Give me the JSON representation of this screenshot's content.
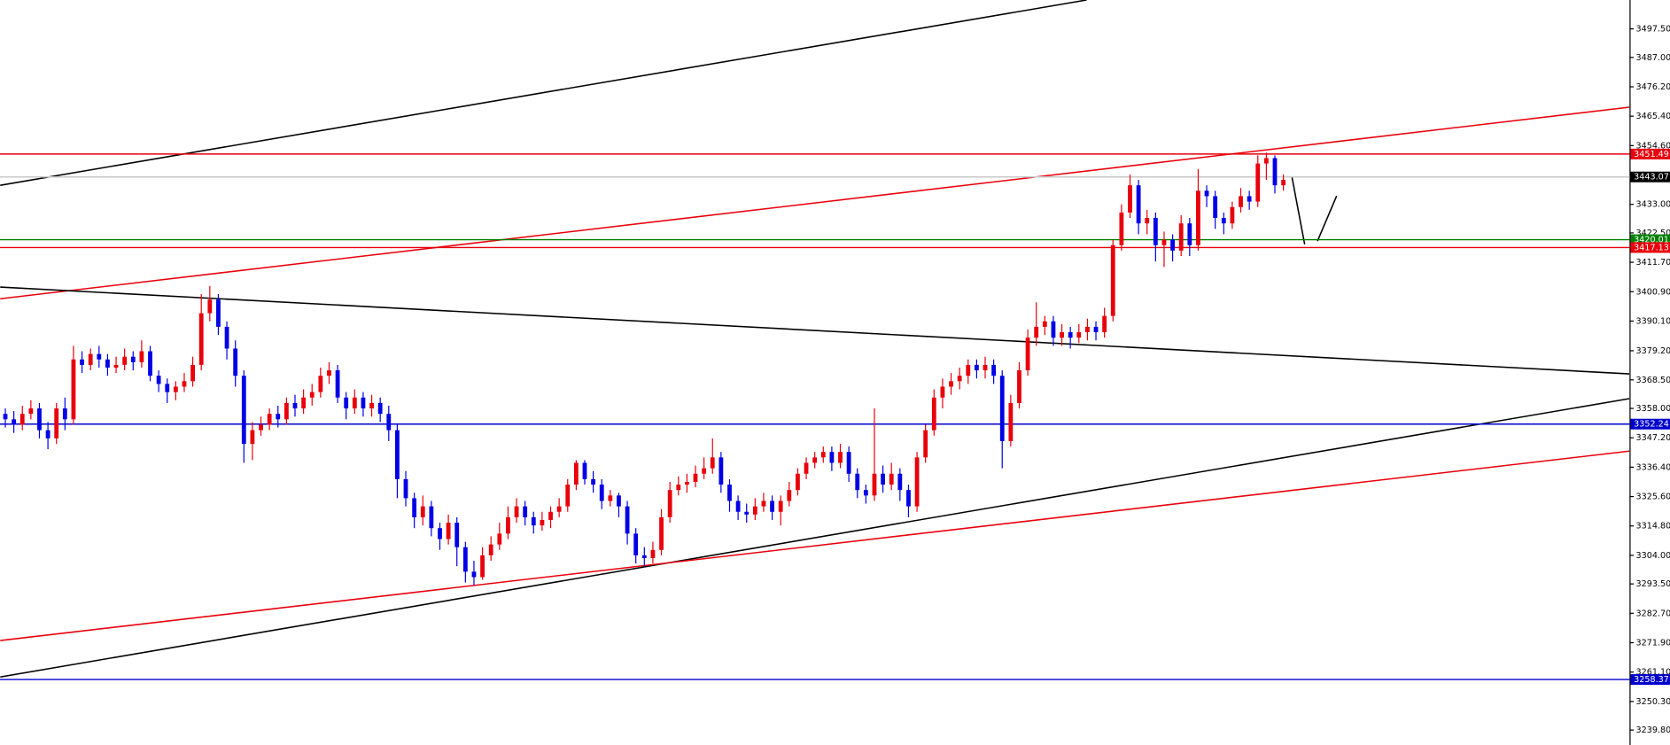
{
  "chart_data": {
    "type": "candlestick",
    "up_color": "#e8000b",
    "down_color": "#0000e6",
    "ylim": [
      3234.3,
      3508.1
    ],
    "yticks": [
      {
        "value": 3497.5,
        "label": "3497.50"
      },
      {
        "value": 3487.0,
        "label": "3487.00"
      },
      {
        "value": 3476.2,
        "label": "3476.20"
      },
      {
        "value": 3465.4,
        "label": "3465.40"
      },
      {
        "value": 3454.6,
        "label": "3454.60"
      },
      {
        "value": 3433.0,
        "label": "3433.00"
      },
      {
        "value": 3422.5,
        "label": "3422.50"
      },
      {
        "value": 3411.7,
        "label": "3411.70"
      },
      {
        "value": 3400.9,
        "label": "3400.90"
      },
      {
        "value": 3390.1,
        "label": "3390.10"
      },
      {
        "value": 3379.2,
        "label": "3379.20"
      },
      {
        "value": 3368.5,
        "label": "3368.50"
      },
      {
        "value": 3358.0,
        "label": "3358.00"
      },
      {
        "value": 3347.2,
        "label": "3347.20"
      },
      {
        "value": 3336.4,
        "label": "3336.40"
      },
      {
        "value": 3325.6,
        "label": "3325.60"
      },
      {
        "value": 3314.8,
        "label": "3314.80"
      },
      {
        "value": 3304.0,
        "label": "3304.00"
      },
      {
        "value": 3293.5,
        "label": "3293.50"
      },
      {
        "value": 3282.7,
        "label": "3282.70"
      },
      {
        "value": 3271.9,
        "label": "3271.90"
      },
      {
        "value": 3261.1,
        "label": "3261.10"
      },
      {
        "value": 3250.3,
        "label": "3250.30"
      },
      {
        "value": 3239.8,
        "label": "3239.80"
      }
    ],
    "levels": [
      {
        "value": 3443.07,
        "line_color": "#c8c8c8",
        "color": "#000000"
      },
      {
        "value": 3451.49,
        "line_color": "#e8000b",
        "color": "#e8000b"
      },
      {
        "value": 3420.01,
        "line_color": "#008000",
        "color": "#008000"
      },
      {
        "value": 3417.13,
        "line_color": "#e8000b",
        "color": "#e8000b"
      },
      {
        "value": 3352.24,
        "line_color": "#0000cc",
        "color": "#0000cc"
      },
      {
        "value": 3258.37,
        "line_color": "#0000cc",
        "color": "#0000cc"
      }
    ],
    "trendlines": [
      {
        "color": "#000000",
        "from": [
          -0.6,
          3440.0
        ],
        "to": [
          126.9,
          3508.1
        ]
      },
      {
        "color": "#e8000b",
        "from": [
          -0.6,
          3398.3
        ],
        "to": [
          190.6,
          3468.7
        ]
      },
      {
        "color": "#000000",
        "from": [
          -0.6,
          3402.6
        ],
        "to": [
          190.6,
          3370.7
        ]
      },
      {
        "color": "#000000",
        "from": [
          -0.6,
          3259.3
        ],
        "to": [
          190.6,
          3361.6
        ]
      },
      {
        "color": "#e8000b",
        "from": [
          -0.6,
          3272.7
        ],
        "to": [
          190.6,
          3342.3
        ]
      },
      {
        "color": "#000000",
        "from": [
          151.0,
          3443.1
        ],
        "to": [
          152.5,
          3418.3
        ]
      },
      {
        "color": "#000000",
        "from": [
          154.0,
          3419.5
        ],
        "to": [
          156.25,
          3436.1
        ]
      }
    ],
    "candles": [
      [
        3356,
        3358,
        3351,
        3354
      ],
      [
        3354,
        3357,
        3349,
        3352
      ],
      [
        3352,
        3359,
        3350,
        3356
      ],
      [
        3356,
        3361,
        3354,
        3358
      ],
      [
        3358,
        3360,
        3347,
        3350
      ],
      [
        3350,
        3353,
        3343,
        3347
      ],
      [
        3347,
        3360,
        3345,
        3358
      ],
      [
        3358,
        3362,
        3350,
        3354
      ],
      [
        3354,
        3381,
        3352,
        3376
      ],
      [
        3376,
        3379,
        3371,
        3374
      ],
      [
        3374,
        3380,
        3372,
        3378
      ],
      [
        3378,
        3381,
        3373,
        3376
      ],
      [
        3376,
        3378,
        3370,
        3373
      ],
      [
        3373,
        3377,
        3371,
        3374
      ],
      [
        3374,
        3380,
        3372,
        3377
      ],
      [
        3377,
        3379,
        3372,
        3375
      ],
      [
        3375,
        3383,
        3373,
        3379
      ],
      [
        3379,
        3381,
        3368,
        3370
      ],
      [
        3370,
        3372,
        3364,
        3367
      ],
      [
        3367,
        3369,
        3360,
        3364
      ],
      [
        3364,
        3368,
        3361,
        3366
      ],
      [
        3366,
        3371,
        3364,
        3368
      ],
      [
        3368,
        3377,
        3366,
        3374
      ],
      [
        3374,
        3400,
        3372,
        3393
      ],
      [
        3393,
        3403,
        3390,
        3398
      ],
      [
        3398,
        3400,
        3385,
        3388
      ],
      [
        3388,
        3390,
        3376,
        3380
      ],
      [
        3380,
        3383,
        3366,
        3370
      ],
      [
        3370,
        3372,
        3338,
        3345
      ],
      [
        3345,
        3353,
        3339,
        3350
      ],
      [
        3350,
        3355,
        3348,
        3352
      ],
      [
        3352,
        3358,
        3350,
        3356
      ],
      [
        3356,
        3359,
        3351,
        3354
      ],
      [
        3354,
        3362,
        3352,
        3360
      ],
      [
        3360,
        3363,
        3355,
        3358
      ],
      [
        3358,
        3365,
        3356,
        3362
      ],
      [
        3362,
        3367,
        3359,
        3364
      ],
      [
        3364,
        3373,
        3362,
        3370
      ],
      [
        3370,
        3375,
        3367,
        3372
      ],
      [
        3372,
        3374,
        3360,
        3362
      ],
      [
        3362,
        3364,
        3354,
        3358
      ],
      [
        3358,
        3365,
        3356,
        3362
      ],
      [
        3362,
        3364,
        3355,
        3358
      ],
      [
        3358,
        3363,
        3355,
        3360
      ],
      [
        3360,
        3362,
        3353,
        3356
      ],
      [
        3356,
        3359,
        3346,
        3350
      ],
      [
        3350,
        3352,
        3325,
        3332
      ],
      [
        3332,
        3335,
        3322,
        3325
      ],
      [
        3325,
        3327,
        3314,
        3318
      ],
      [
        3318,
        3326,
        3315,
        3322
      ],
      [
        3322,
        3324,
        3311,
        3314
      ],
      [
        3314,
        3316,
        3306,
        3310
      ],
      [
        3310,
        3319,
        3308,
        3316
      ],
      [
        3316,
        3318,
        3300,
        3307
      ],
      [
        3307,
        3309,
        3294,
        3298
      ],
      [
        3298,
        3302,
        3293,
        3296
      ],
      [
        3296,
        3307,
        3295,
        3304
      ],
      [
        3304,
        3311,
        3302,
        3308
      ],
      [
        3308,
        3316,
        3306,
        3312
      ],
      [
        3312,
        3322,
        3310,
        3318
      ],
      [
        3318,
        3325,
        3316,
        3322
      ],
      [
        3322,
        3324,
        3315,
        3318
      ],
      [
        3318,
        3320,
        3312,
        3315
      ],
      [
        3315,
        3320,
        3313,
        3317
      ],
      [
        3317,
        3322,
        3314,
        3320
      ],
      [
        3320,
        3325,
        3318,
        3322
      ],
      [
        3322,
        3332,
        3320,
        3330
      ],
      [
        3330,
        3339,
        3328,
        3338
      ],
      [
        3338,
        3339,
        3330,
        3332
      ],
      [
        3332,
        3335,
        3327,
        3330
      ],
      [
        3330,
        3332,
        3321,
        3324
      ],
      [
        3324,
        3328,
        3322,
        3326
      ],
      [
        3326,
        3327,
        3318,
        3322
      ],
      [
        3322,
        3324,
        3308,
        3312
      ],
      [
        3312,
        3314,
        3301,
        3304
      ],
      [
        3304,
        3307,
        3300,
        3303
      ],
      [
        3303,
        3309,
        3301,
        3306
      ],
      [
        3306,
        3321,
        3304,
        3318
      ],
      [
        3318,
        3331,
        3316,
        3328
      ],
      [
        3328,
        3333,
        3326,
        3330
      ],
      [
        3330,
        3334,
        3327,
        3331
      ],
      [
        3331,
        3337,
        3329,
        3334
      ],
      [
        3334,
        3340,
        3332,
        3336
      ],
      [
        3336,
        3347,
        3334,
        3340
      ],
      [
        3340,
        3342,
        3327,
        3330
      ],
      [
        3330,
        3332,
        3320,
        3324
      ],
      [
        3324,
        3326,
        3317,
        3320
      ],
      [
        3320,
        3323,
        3316,
        3319
      ],
      [
        3319,
        3325,
        3317,
        3322
      ],
      [
        3322,
        3327,
        3320,
        3324
      ],
      [
        3324,
        3326,
        3317,
        3320
      ],
      [
        3320,
        3326,
        3315,
        3324
      ],
      [
        3324,
        3331,
        3322,
        3328
      ],
      [
        3328,
        3336,
        3326,
        3334
      ],
      [
        3334,
        3340,
        3332,
        3338
      ],
      [
        3338,
        3342,
        3336,
        3340
      ],
      [
        3340,
        3344,
        3338,
        3342
      ],
      [
        3342,
        3344,
        3335,
        3338
      ],
      [
        3338,
        3345,
        3336,
        3342
      ],
      [
        3342,
        3344,
        3331,
        3334
      ],
      [
        3334,
        3336,
        3325,
        3328
      ],
      [
        3328,
        3330,
        3323,
        3326
      ],
      [
        3326,
        3358,
        3324,
        3334
      ],
      [
        3334,
        3337,
        3327,
        3330
      ],
      [
        3330,
        3338,
        3328,
        3334
      ],
      [
        3334,
        3336,
        3324,
        3328
      ],
      [
        3328,
        3330,
        3318,
        3322
      ],
      [
        3322,
        3342,
        3320,
        3340
      ],
      [
        3340,
        3352,
        3338,
        3350
      ],
      [
        3350,
        3365,
        3348,
        3362
      ],
      [
        3362,
        3369,
        3358,
        3366
      ],
      [
        3366,
        3371,
        3363,
        3368
      ],
      [
        3368,
        3373,
        3365,
        3370
      ],
      [
        3370,
        3376,
        3367,
        3374
      ],
      [
        3374,
        3376,
        3369,
        3372
      ],
      [
        3372,
        3377,
        3369,
        3374
      ],
      [
        3374,
        3376,
        3367,
        3370
      ],
      [
        3370,
        3372,
        3336,
        3346
      ],
      [
        3346,
        3363,
        3344,
        3360
      ],
      [
        3360,
        3375,
        3358,
        3372
      ],
      [
        3372,
        3387,
        3370,
        3384
      ],
      [
        3384,
        3397,
        3381,
        3388
      ],
      [
        3388,
        3392,
        3385,
        3390
      ],
      [
        3390,
        3392,
        3381,
        3384
      ],
      [
        3384,
        3389,
        3381,
        3386
      ],
      [
        3386,
        3388,
        3380,
        3384
      ],
      [
        3384,
        3389,
        3382,
        3386
      ],
      [
        3386,
        3391,
        3383,
        3388
      ],
      [
        3388,
        3390,
        3383,
        3386
      ],
      [
        3386,
        3395,
        3384,
        3392
      ],
      [
        3392,
        3420,
        3390,
        3418
      ],
      [
        3418,
        3433,
        3416,
        3430
      ],
      [
        3430,
        3444,
        3428,
        3440
      ],
      [
        3440,
        3442,
        3422,
        3426
      ],
      [
        3426,
        3431,
        3422,
        3428
      ],
      [
        3428,
        3430,
        3412,
        3418
      ],
      [
        3418,
        3423,
        3410,
        3420
      ],
      [
        3420,
        3422,
        3412,
        3416
      ],
      [
        3416,
        3429,
        3414,
        3426
      ],
      [
        3426,
        3428,
        3414,
        3418
      ],
      [
        3418,
        3446,
        3416,
        3438
      ],
      [
        3438,
        3440,
        3432,
        3436
      ],
      [
        3436,
        3438,
        3424,
        3428
      ],
      [
        3428,
        3430,
        3422,
        3426
      ],
      [
        3426,
        3434,
        3424,
        3432
      ],
      [
        3432,
        3439,
        3430,
        3436
      ],
      [
        3436,
        3438,
        3431,
        3434
      ],
      [
        3434,
        3451,
        3432,
        3448
      ],
      [
        3448,
        3452,
        3442,
        3450
      ],
      [
        3450,
        3451,
        3437,
        3440
      ],
      [
        3440,
        3444,
        3438,
        3442
      ]
    ]
  }
}
